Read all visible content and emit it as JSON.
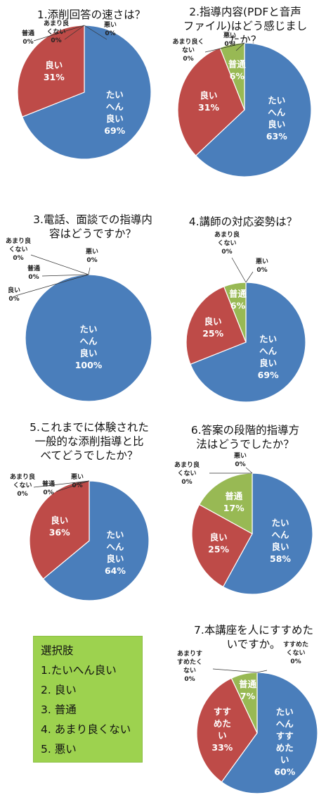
{
  "colors": {
    "very_good": "#4a7ebb",
    "good": "#be4b48",
    "normal": "#98b954",
    "leader": "#333333"
  },
  "legend": {
    "title": "選択肢",
    "items": [
      "1.たいへん良い",
      "2. 良い",
      "3. 普通",
      "4. あまり良くない",
      "5. 悪い"
    ]
  },
  "chart_data": [
    {
      "type": "pie",
      "title": [
        "1.添削回答の速さは？"
      ],
      "slices": [
        {
          "label": [
            "たい",
            "へん",
            "良い"
          ],
          "pct": "69%",
          "value": 69,
          "color": "very_good"
        },
        {
          "label": [
            "良い"
          ],
          "pct": "31%",
          "value": 31,
          "color": "good"
        },
        {
          "label": [
            "普通"
          ],
          "pct": "0%",
          "value": 0
        },
        {
          "label": [
            "あまり良",
            "くない"
          ],
          "pct": "0%",
          "value": 0
        },
        {
          "label": [
            "悪い"
          ],
          "pct": "0%",
          "value": 0
        }
      ]
    },
    {
      "type": "pie",
      "title": [
        "2.指導内容(PDFと音声",
        "ファイル)はどう感じまし",
        "たか？"
      ],
      "slices": [
        {
          "label": [
            "たい",
            "へん",
            "良い"
          ],
          "pct": "63%",
          "value": 63,
          "color": "very_good"
        },
        {
          "label": [
            "良い"
          ],
          "pct": "31%",
          "value": 31,
          "color": "good"
        },
        {
          "label": [
            "普通"
          ],
          "pct": "6%",
          "value": 6,
          "color": "normal"
        },
        {
          "label": [
            "あまり良く",
            "ない"
          ],
          "pct": "0%",
          "value": 0
        },
        {
          "label": [
            "悪い"
          ],
          "pct": "0%",
          "value": 0
        }
      ]
    },
    {
      "type": "pie",
      "title": [
        "3.電話、面談での指導内",
        "容はどうですか？"
      ],
      "slices": [
        {
          "label": [
            "たい",
            "へん",
            "良い"
          ],
          "pct": "100%",
          "value": 100,
          "color": "very_good"
        },
        {
          "label": [
            "良い"
          ],
          "pct": "0%",
          "value": 0
        },
        {
          "label": [
            "普通"
          ],
          "pct": "0%",
          "value": 0
        },
        {
          "label": [
            "あまり良",
            "くない"
          ],
          "pct": "0%",
          "value": 0
        },
        {
          "label": [
            "悪い"
          ],
          "pct": "0%",
          "value": 0
        }
      ]
    },
    {
      "type": "pie",
      "title": [
        "4.講師の対応姿勢は？"
      ],
      "slices": [
        {
          "label": [
            "たい",
            "へん",
            "良い"
          ],
          "pct": "69%",
          "value": 69,
          "color": "very_good"
        },
        {
          "label": [
            "良い"
          ],
          "pct": "25%",
          "value": 25,
          "color": "good"
        },
        {
          "label": [
            "普通"
          ],
          "pct": "6%",
          "value": 6,
          "color": "normal"
        },
        {
          "label": [
            "あまり良",
            "くない"
          ],
          "pct": "0%",
          "value": 0
        },
        {
          "label": [
            "悪い"
          ],
          "pct": "0%",
          "value": 0
        }
      ]
    },
    {
      "type": "pie",
      "title": [
        "5.これまでに体験された",
        "一般的な添削指導と比",
        "べてどうでしたか？"
      ],
      "slices": [
        {
          "label": [
            "たい",
            "へん",
            "良い"
          ],
          "pct": "64%",
          "value": 64,
          "color": "very_good"
        },
        {
          "label": [
            "良い"
          ],
          "pct": "36%",
          "value": 36,
          "color": "good"
        },
        {
          "label": [
            "普通"
          ],
          "pct": "0%",
          "value": 0
        },
        {
          "label": [
            "あまり良",
            "くない"
          ],
          "pct": "0%",
          "value": 0
        },
        {
          "label": [
            "悪い"
          ],
          "pct": "0%",
          "value": 0
        }
      ]
    },
    {
      "type": "pie",
      "title": [
        "6.答案の段階的指導方",
        "法はどうでしたか？"
      ],
      "slices": [
        {
          "label": [
            "たい",
            "へん",
            "良い"
          ],
          "pct": "58%",
          "value": 58,
          "color": "very_good"
        },
        {
          "label": [
            "良い"
          ],
          "pct": "25%",
          "value": 25,
          "color": "good"
        },
        {
          "label": [
            "普通"
          ],
          "pct": "17%",
          "value": 17,
          "color": "normal"
        },
        {
          "label": [
            "あまり良",
            "くない"
          ],
          "pct": "0%",
          "value": 0
        },
        {
          "label": [
            "悪い"
          ],
          "pct": "0%",
          "value": 0
        }
      ]
    },
    {
      "type": "pie",
      "title": [
        "7.本講座を人にすすめた",
        "いですか。"
      ],
      "slices": [
        {
          "label": [
            "たい",
            "へん",
            "すす",
            "めた",
            "い"
          ],
          "pct": "60%",
          "value": 60,
          "color": "very_good"
        },
        {
          "label": [
            "すす",
            "めた",
            "い"
          ],
          "pct": "33%",
          "value": 33,
          "color": "good"
        },
        {
          "label": [
            "普通"
          ],
          "pct": "7%",
          "value": 7,
          "color": "normal"
        },
        {
          "label": [
            "あまりす",
            "すめたく",
            "ない"
          ],
          "pct": "0%",
          "value": 0
        },
        {
          "label": [
            "すすめた",
            "くない"
          ],
          "pct": "0%",
          "value": 0
        }
      ]
    }
  ]
}
